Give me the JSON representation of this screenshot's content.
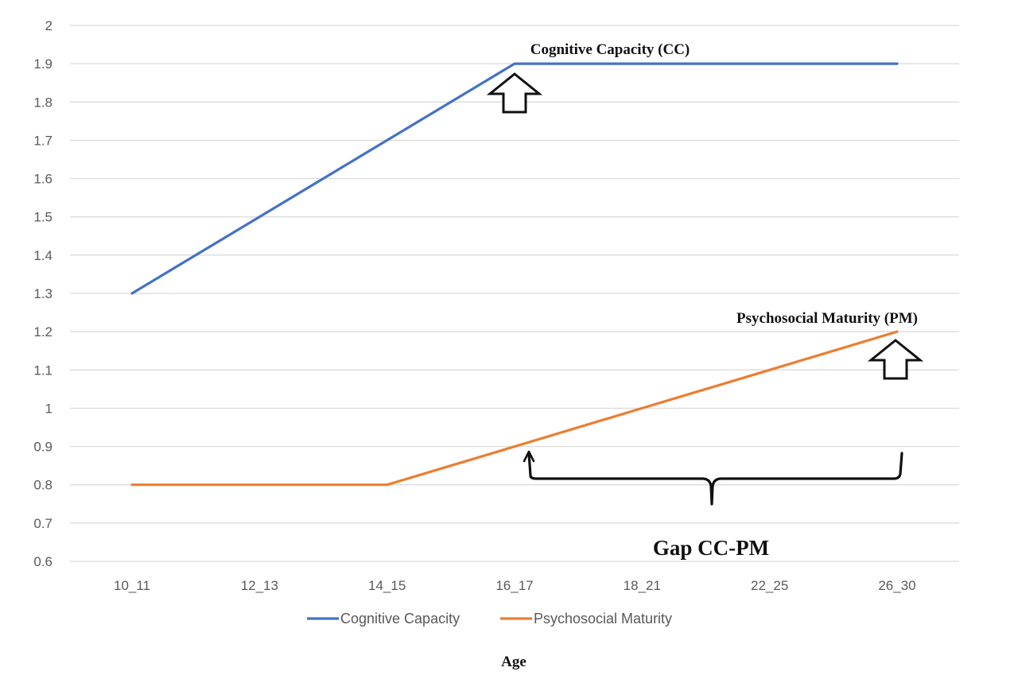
{
  "chart_data": {
    "type": "line",
    "title": "",
    "xlabel": "Age",
    "ylabel": "",
    "categories": [
      "10_11",
      "12_13",
      "14_15",
      "16_17",
      "18_21",
      "22_25",
      "26_30"
    ],
    "series": [
      {
        "name": "Cognitive Capacity",
        "color": "#4472C4",
        "values": [
          1.3,
          1.5,
          1.7,
          1.9,
          1.9,
          1.9,
          1.9
        ]
      },
      {
        "name": "Psychosocial Maturity",
        "color": "#ED7D31",
        "values": [
          0.8,
          0.8,
          0.8,
          0.9,
          1.0,
          1.1,
          1.2
        ]
      }
    ],
    "ylim": [
      0.6,
      2.0
    ],
    "yticks": [
      "0.6",
      "0.7",
      "0.8",
      "0.9",
      "1",
      "1.1",
      "1.2",
      "1.3",
      "1.4",
      "1.5",
      "1.6",
      "1.7",
      "1.8",
      "1.9",
      "2"
    ],
    "grid": true,
    "legend_position": "bottom",
    "annotations": {
      "cc_label": "Cognitive Capacity (CC)",
      "pm_label": "Psychosocial Maturity (PM)",
      "gap_label": "Gap CC-PM"
    }
  }
}
